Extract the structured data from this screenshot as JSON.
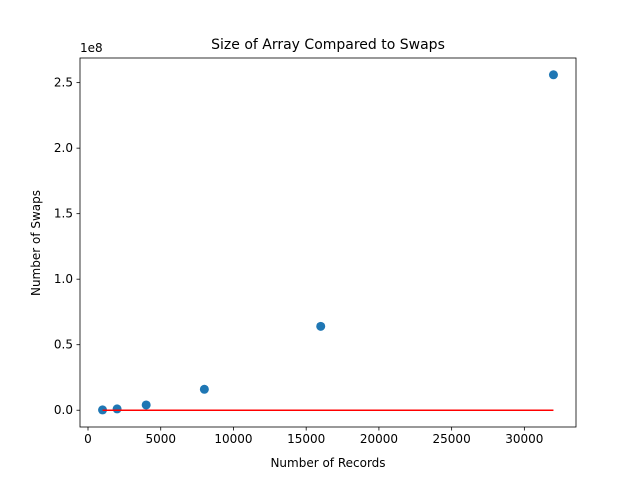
{
  "chart_data": {
    "type": "scatter",
    "title": "Size of Array Compared to Swaps",
    "xlabel": "Number of Records",
    "ylabel": "Number of Swaps",
    "y_offset_text": "1e8",
    "xlim": [
      -550,
      33550
    ],
    "ylim": [
      -12800000,
      268800000
    ],
    "x_ticks": [
      0,
      5000,
      10000,
      15000,
      20000,
      25000,
      30000
    ],
    "x_tick_labels": [
      "0",
      "5000",
      "10000",
      "15000",
      "20000",
      "25000",
      "30000"
    ],
    "y_ticks": [
      0,
      50000000,
      100000000,
      150000000,
      200000000,
      250000000
    ],
    "y_tick_labels": [
      "0.0",
      "0.5",
      "1.0",
      "1.5",
      "2.0",
      "2.5"
    ],
    "grid": false,
    "series": [
      {
        "kind": "scatter",
        "color": "#1f77b4",
        "x": [
          1000,
          2000,
          4000,
          8000,
          16000,
          32000
        ],
        "y": [
          250000,
          1000000,
          4000000,
          16000000,
          64000000,
          256000000
        ]
      },
      {
        "kind": "line",
        "color": "#ff0000",
        "x": [
          1000,
          32000
        ],
        "y": [
          0,
          0
        ]
      }
    ]
  }
}
